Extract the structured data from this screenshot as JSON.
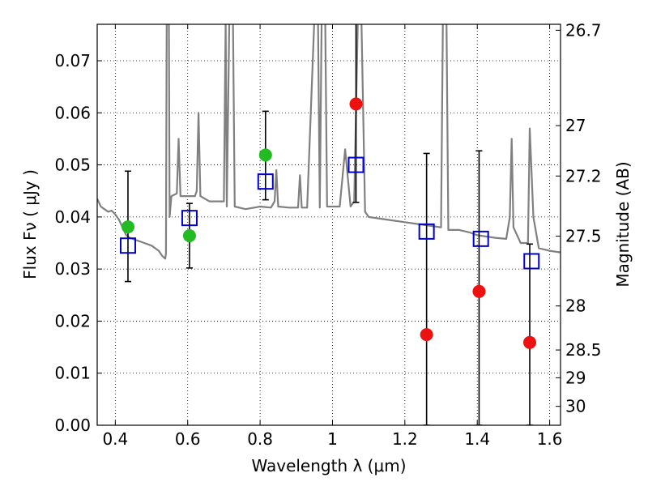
{
  "chart_data": {
    "type": "scatter",
    "xlabel": "Wavelength  λ (μm)",
    "ylabel": "Flux  Fν  ( μJy )",
    "y2label": "Magnitude (AB)",
    "xlim": [
      0.35,
      1.63
    ],
    "ylim": [
      0.0,
      0.077
    ],
    "grid": true,
    "x_ticks": [
      "0.4",
      "0.6",
      "0.8",
      "1",
      "1.2",
      "1.4",
      "1.6"
    ],
    "x_tick_values": [
      0.4,
      0.6,
      0.8,
      1.0,
      1.2,
      1.4,
      1.6
    ],
    "y_ticks": [
      "0.00",
      "0.01",
      "0.02",
      "0.03",
      "0.04",
      "0.05",
      "0.06",
      "0.07"
    ],
    "y_tick_values": [
      0.0,
      0.01,
      0.02,
      0.03,
      0.04,
      0.05,
      0.06,
      0.07
    ],
    "y2_ticks": [
      "26.7",
      "27",
      "27.2",
      "27.5",
      "28",
      "28.5",
      "29",
      "30"
    ],
    "y2_tick_values": [
      26.7,
      27.0,
      27.2,
      27.5,
      28.0,
      28.5,
      29.0,
      30.0
    ],
    "colors": {
      "spectrum": "#808080",
      "model": "#0000cc",
      "green": "#22bb22",
      "red": "#ee1111",
      "error": "#000000"
    },
    "spectrum": [
      [
        0.35,
        0.0435
      ],
      [
        0.36,
        0.042
      ],
      [
        0.37,
        0.0415
      ],
      [
        0.38,
        0.041
      ],
      [
        0.39,
        0.0412
      ],
      [
        0.4,
        0.0405
      ],
      [
        0.41,
        0.0395
      ],
      [
        0.42,
        0.038
      ],
      [
        0.43,
        0.0365
      ],
      [
        0.44,
        0.036
      ],
      [
        0.46,
        0.0355
      ],
      [
        0.48,
        0.035
      ],
      [
        0.5,
        0.0345
      ],
      [
        0.52,
        0.0335
      ],
      [
        0.53,
        0.0325
      ],
      [
        0.538,
        0.032
      ],
      [
        0.54,
        0.033
      ],
      [
        0.542,
        0.078
      ],
      [
        0.548,
        0.078
      ],
      [
        0.55,
        0.04
      ],
      [
        0.555,
        0.044
      ],
      [
        0.57,
        0.0445
      ],
      [
        0.575,
        0.055
      ],
      [
        0.58,
        0.044
      ],
      [
        0.6,
        0.044
      ],
      [
        0.62,
        0.044
      ],
      [
        0.625,
        0.045
      ],
      [
        0.63,
        0.06
      ],
      [
        0.635,
        0.044
      ],
      [
        0.66,
        0.043
      ],
      [
        0.7,
        0.043
      ],
      [
        0.705,
        0.078
      ],
      [
        0.708,
        0.042
      ],
      [
        0.715,
        0.078
      ],
      [
        0.72,
        0.078
      ],
      [
        0.725,
        0.078
      ],
      [
        0.73,
        0.042
      ],
      [
        0.76,
        0.0415
      ],
      [
        0.8,
        0.042
      ],
      [
        0.83,
        0.0418
      ],
      [
        0.84,
        0.043
      ],
      [
        0.845,
        0.049
      ],
      [
        0.85,
        0.042
      ],
      [
        0.88,
        0.0418
      ],
      [
        0.905,
        0.0418
      ],
      [
        0.91,
        0.048
      ],
      [
        0.915,
        0.0418
      ],
      [
        0.93,
        0.0418
      ],
      [
        0.95,
        0.078
      ],
      [
        0.96,
        0.078
      ],
      [
        0.965,
        0.0418
      ],
      [
        0.97,
        0.078
      ],
      [
        0.98,
        0.078
      ],
      [
        0.985,
        0.042
      ],
      [
        1.0,
        0.042
      ],
      [
        1.02,
        0.042
      ],
      [
        1.035,
        0.053
      ],
      [
        1.05,
        0.042
      ],
      [
        1.06,
        0.043
      ],
      [
        1.07,
        0.078
      ],
      [
        1.08,
        0.078
      ],
      [
        1.09,
        0.041
      ],
      [
        1.1,
        0.04
      ],
      [
        1.15,
        0.0395
      ],
      [
        1.2,
        0.039
      ],
      [
        1.25,
        0.0385
      ],
      [
        1.3,
        0.038
      ],
      [
        1.305,
        0.078
      ],
      [
        1.315,
        0.078
      ],
      [
        1.32,
        0.0375
      ],
      [
        1.35,
        0.0375
      ],
      [
        1.38,
        0.037
      ],
      [
        1.4,
        0.0365
      ],
      [
        1.45,
        0.036
      ],
      [
        1.48,
        0.0358
      ],
      [
        1.49,
        0.04
      ],
      [
        1.495,
        0.055
      ],
      [
        1.5,
        0.038
      ],
      [
        1.52,
        0.035
      ],
      [
        1.54,
        0.035
      ],
      [
        1.545,
        0.057
      ],
      [
        1.555,
        0.04
      ],
      [
        1.57,
        0.034
      ],
      [
        1.6,
        0.0335
      ],
      [
        1.63,
        0.0332
      ]
    ],
    "model_points": [
      {
        "x": 0.435,
        "y": 0.0345
      },
      {
        "x": 0.605,
        "y": 0.0398
      },
      {
        "x": 0.815,
        "y": 0.0468
      },
      {
        "x": 1.065,
        "y": 0.05
      },
      {
        "x": 1.26,
        "y": 0.0372
      },
      {
        "x": 1.41,
        "y": 0.0358
      },
      {
        "x": 1.55,
        "y": 0.0315
      }
    ],
    "observed_points": [
      {
        "x": 0.435,
        "y": 0.0381,
        "color": "green",
        "err_low": 0.0276,
        "err_high": 0.0488
      },
      {
        "x": 0.605,
        "y": 0.0364,
        "color": "green",
        "err_low": 0.0302,
        "err_high": 0.0426
      },
      {
        "x": 0.815,
        "y": 0.0519,
        "color": "green",
        "err_low": 0.0433,
        "err_high": 0.0603
      },
      {
        "x": 1.065,
        "y": 0.0617,
        "color": "red",
        "err_low": 0.0428,
        "err_high": 0.079
      },
      {
        "x": 1.26,
        "y": 0.0174,
        "color": "red",
        "err_low": 0.0,
        "err_high": 0.0522
      },
      {
        "x": 1.405,
        "y": 0.0257,
        "color": "red",
        "err_low": 0.0,
        "err_high": 0.0527
      },
      {
        "x": 1.545,
        "y": 0.0159,
        "color": "red",
        "err_low": 0.0,
        "err_high": 0.0348
      }
    ]
  }
}
